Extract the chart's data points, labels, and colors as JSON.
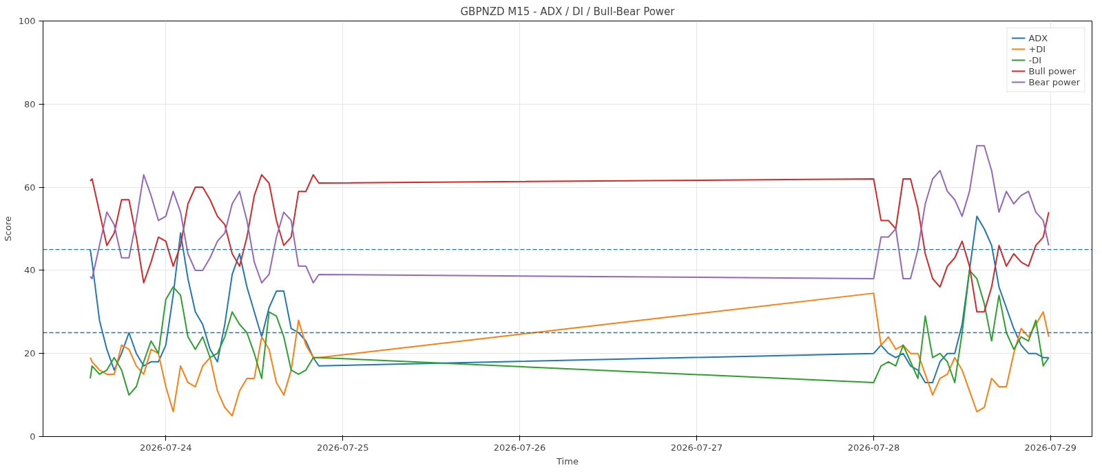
{
  "chart_data": {
    "type": "line",
    "title": "GBPNZD M15 - ADX / DI / Bull-Bear Power",
    "xlabel": "Time",
    "ylabel": "Score",
    "x": [
      "2026-07-23T13:45",
      "2026-07-23T14:00",
      "2026-07-23T15:00",
      "2026-07-23T16:00",
      "2026-07-23T17:00",
      "2026-07-23T18:00",
      "2026-07-23T19:00",
      "2026-07-23T20:00",
      "2026-07-23T21:00",
      "2026-07-23T22:00",
      "2026-07-23T23:00",
      "2026-07-24T00:00",
      "2026-07-24T01:00",
      "2026-07-24T02:00",
      "2026-07-24T03:00",
      "2026-07-24T04:00",
      "2026-07-24T05:00",
      "2026-07-24T06:00",
      "2026-07-24T07:00",
      "2026-07-24T08:00",
      "2026-07-24T09:00",
      "2026-07-24T10:00",
      "2026-07-24T11:00",
      "2026-07-24T12:00",
      "2026-07-24T13:00",
      "2026-07-24T14:00",
      "2026-07-24T15:00",
      "2026-07-24T16:00",
      "2026-07-24T17:00",
      "2026-07-24T18:00",
      "2026-07-24T19:00",
      "2026-07-24T20:00",
      "2026-07-24T20:45",
      "2026-07-28T00:00",
      "2026-07-28T01:00",
      "2026-07-28T02:00",
      "2026-07-28T03:00",
      "2026-07-28T04:00",
      "2026-07-28T05:00",
      "2026-07-28T06:00",
      "2026-07-28T07:00",
      "2026-07-28T08:00",
      "2026-07-28T09:00",
      "2026-07-28T10:00",
      "2026-07-28T11:00",
      "2026-07-28T12:00",
      "2026-07-28T13:00",
      "2026-07-28T14:00",
      "2026-07-28T15:00",
      "2026-07-28T16:00",
      "2026-07-28T17:00",
      "2026-07-28T18:00",
      "2026-07-28T19:00",
      "2026-07-28T20:00",
      "2026-07-28T21:00",
      "2026-07-28T22:00",
      "2026-07-28T23:00",
      "2026-07-28T23:45"
    ],
    "series": [
      {
        "name": "ADX",
        "color": "#1f77b4",
        "values": [
          45,
          42,
          28,
          21,
          16,
          20,
          25,
          20,
          17,
          18,
          18,
          22,
          34,
          49,
          38,
          30,
          27,
          21,
          18,
          27,
          39,
          44,
          36,
          30,
          24,
          31,
          35,
          35,
          26,
          25,
          23,
          19,
          17,
          20,
          22,
          20,
          19,
          20,
          17,
          16,
          13,
          13,
          18,
          20,
          20,
          27,
          40,
          53,
          50,
          46,
          36,
          31,
          26,
          22,
          20,
          20,
          19,
          19
        ]
      },
      {
        "name": "+DI",
        "color": "#ff7f0e",
        "values": [
          19,
          18,
          16,
          15,
          15,
          22,
          21,
          17,
          15,
          21,
          20,
          12,
          6,
          17,
          13,
          12,
          17,
          19,
          11,
          7,
          5,
          11,
          14,
          14,
          24,
          21,
          13,
          10,
          16,
          28,
          22,
          19,
          19,
          34.5,
          22,
          24,
          21,
          22,
          20,
          20,
          15,
          10,
          14,
          15,
          19,
          16,
          11,
          6,
          7,
          14,
          12,
          12,
          20,
          26,
          24,
          27,
          30,
          24
        ]
      },
      {
        "name": "-DI",
        "color": "#2ca02c",
        "values": [
          14,
          17,
          15,
          16,
          19,
          16,
          10,
          12,
          18,
          23,
          20,
          33,
          36,
          34,
          24,
          21,
          24,
          19,
          20,
          24,
          30,
          27,
          25,
          20,
          14,
          30,
          29,
          24,
          16,
          15,
          16,
          19,
          19,
          13,
          17,
          18,
          17,
          22,
          18,
          14,
          29,
          19,
          20,
          18,
          13,
          25,
          40,
          38,
          32,
          23,
          34,
          25,
          21,
          24,
          23,
          28,
          17,
          19
        ]
      },
      {
        "name": "Bull power",
        "color": "#d62728",
        "values": [
          61.5,
          62,
          54,
          46,
          49,
          57,
          57,
          48,
          37,
          42,
          48,
          47,
          41,
          46,
          56,
          60,
          60,
          57,
          53,
          51,
          44,
          41,
          48,
          58,
          63,
          61,
          52,
          46,
          48,
          59,
          59,
          63,
          61,
          62,
          52,
          52,
          50,
          62,
          62,
          55,
          44,
          38,
          36,
          41,
          43,
          47,
          41,
          30,
          30,
          36,
          46,
          41,
          44,
          42,
          41,
          46,
          48,
          54
        ]
      },
      {
        "name": "Bear power",
        "color": "#9467bd",
        "values": [
          38.5,
          38,
          46,
          54,
          51,
          43,
          43,
          52,
          63,
          58,
          52,
          53,
          59,
          54,
          44,
          40,
          40,
          43,
          47,
          49,
          56,
          59,
          52,
          42,
          37,
          39,
          48,
          54,
          52,
          41,
          41,
          37,
          39,
          38,
          48,
          48,
          50,
          38,
          38,
          45,
          56,
          62,
          64,
          59,
          57,
          53,
          59,
          70,
          70,
          64,
          54,
          59,
          56,
          58,
          59,
          54,
          52,
          46
        ]
      }
    ],
    "xlim": [
      "2026-07-23T07:21",
      "2026-07-29T05:37"
    ],
    "xticks": [
      "2026-07-24",
      "2026-07-25",
      "2026-07-26",
      "2026-07-27",
      "2026-07-28",
      "2026-07-29"
    ],
    "ylim": [
      0,
      100
    ],
    "yticks": [
      0,
      20,
      40,
      60,
      80,
      100
    ],
    "ref_lines": [
      {
        "axis": "y",
        "value": 45,
        "color": "#1f77b4",
        "line_style": "dashed"
      },
      {
        "axis": "y",
        "value": 25,
        "color": "#1f77b4",
        "line_style": "dashed"
      }
    ],
    "grid": true,
    "legend": "top right"
  }
}
